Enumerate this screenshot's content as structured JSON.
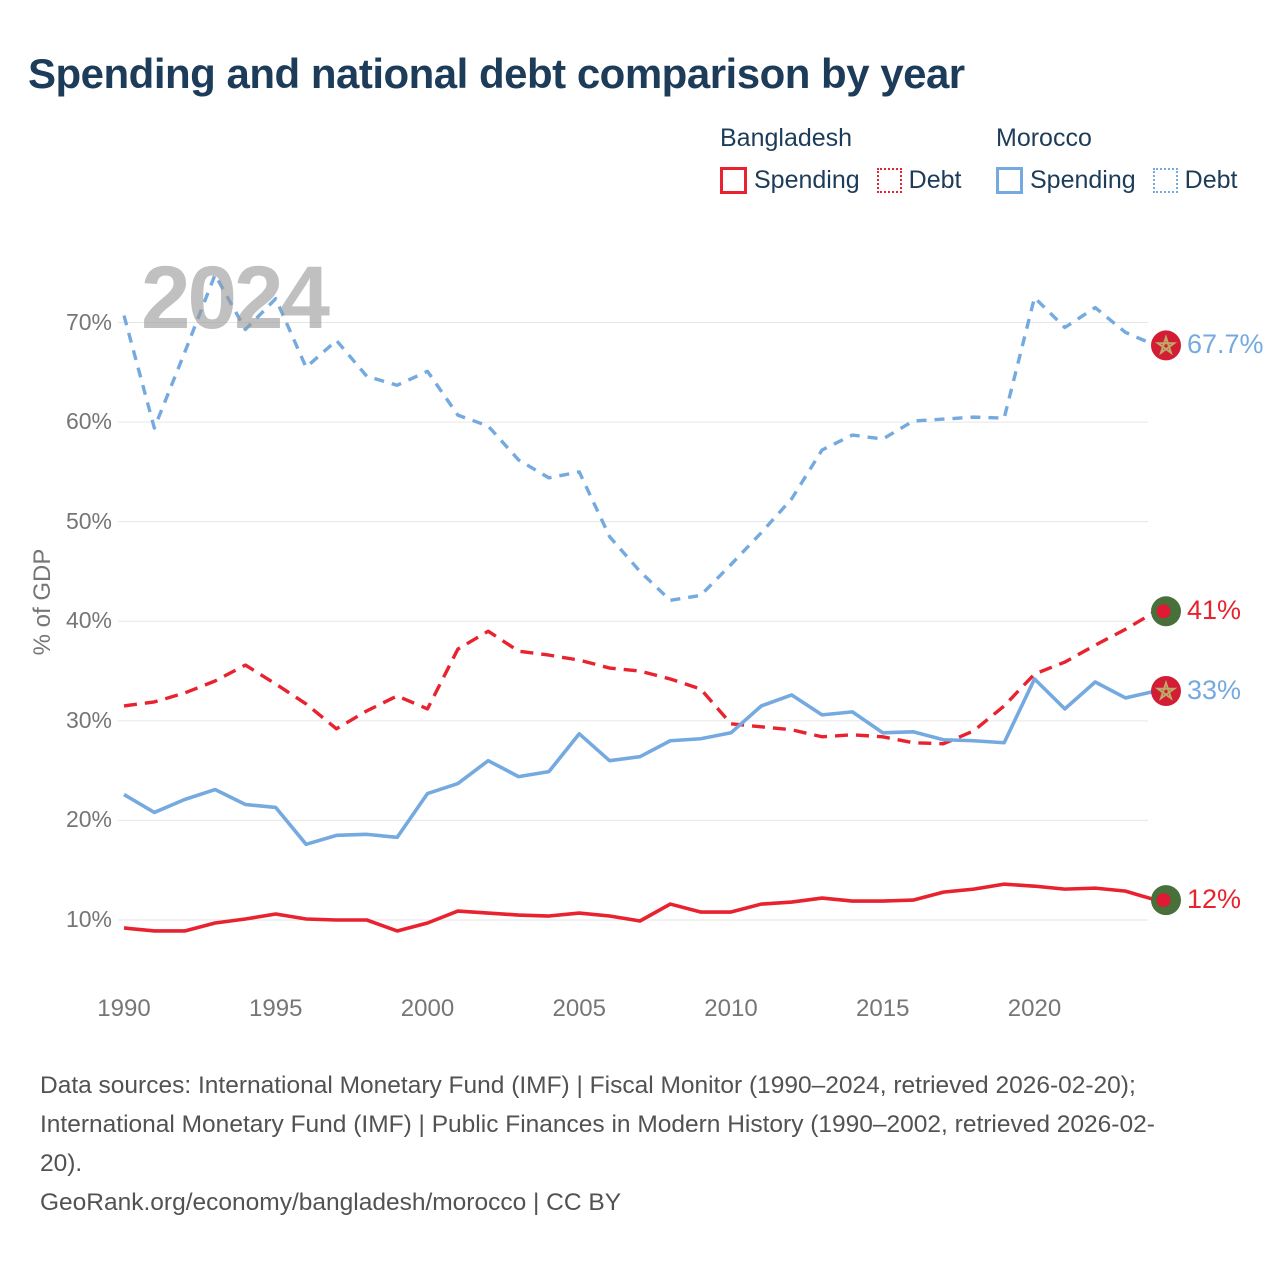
{
  "title": "Spending and national debt comparison by year",
  "watermark": "2024",
  "y_axis_title": "% of GDP",
  "legend": {
    "groups": [
      {
        "name": "Bangladesh",
        "color": "#e8232f",
        "items": [
          {
            "label": "Spending",
            "style": "solid"
          },
          {
            "label": "Debt",
            "style": "dotted"
          }
        ]
      },
      {
        "name": "Morocco",
        "color": "#74aae0",
        "items": [
          {
            "label": "Spending",
            "style": "solid"
          },
          {
            "label": "Debt",
            "style": "dotted"
          }
        ]
      }
    ]
  },
  "axes": {
    "yticks": [
      {
        "value": 10,
        "label": "10%"
      },
      {
        "value": 20,
        "label": "20%"
      },
      {
        "value": 30,
        "label": "30%"
      },
      {
        "value": 40,
        "label": "40%"
      },
      {
        "value": 50,
        "label": "50%"
      },
      {
        "value": 60,
        "label": "60%"
      },
      {
        "value": 70,
        "label": "70%"
      }
    ],
    "xticks": [
      {
        "value": 1990,
        "label": "1990"
      },
      {
        "value": 1995,
        "label": "1995"
      },
      {
        "value": 2000,
        "label": "2000"
      },
      {
        "value": 2005,
        "label": "2005"
      },
      {
        "value": 2010,
        "label": "2010"
      },
      {
        "value": 2015,
        "label": "2015"
      },
      {
        "value": 2020,
        "label": "2020"
      }
    ]
  },
  "chart_data": {
    "type": "line",
    "title": "Spending and national debt comparison by year",
    "xlabel": "",
    "ylabel": "% of GDP",
    "xlim": [
      1990,
      2024
    ],
    "ylim": [
      5,
      78
    ],
    "grid": "horizontal",
    "legend_position": "top-right",
    "x": [
      1990,
      1991,
      1992,
      1993,
      1994,
      1995,
      1996,
      1997,
      1998,
      1999,
      2000,
      2001,
      2002,
      2003,
      2004,
      2005,
      2006,
      2007,
      2008,
      2009,
      2010,
      2011,
      2012,
      2013,
      2014,
      2015,
      2016,
      2017,
      2018,
      2019,
      2020,
      2021,
      2022,
      2023,
      2024
    ],
    "series": [
      {
        "name": "Bangladesh Spending",
        "color": "#e8232f",
        "style": "solid",
        "values": [
          9.2,
          8.9,
          8.9,
          9.7,
          10.1,
          10.6,
          10.1,
          10.0,
          10.0,
          8.9,
          9.7,
          10.9,
          10.7,
          10.5,
          10.4,
          10.7,
          10.4,
          9.9,
          11.6,
          10.8,
          10.8,
          11.6,
          11.8,
          12.2,
          11.9,
          11.9,
          12.0,
          12.8,
          13.1,
          13.6,
          13.4,
          13.1,
          13.2,
          12.9,
          12.0
        ]
      },
      {
        "name": "Bangladesh Debt",
        "color": "#e8232f",
        "style": "dashed",
        "values": [
          31.5,
          31.9,
          32.8,
          34.0,
          35.6,
          33.7,
          31.7,
          29.2,
          31.0,
          32.5,
          31.2,
          37.2,
          39.0,
          37.0,
          36.6,
          36.1,
          35.3,
          35.0,
          34.2,
          33.2,
          29.7,
          29.4,
          29.1,
          28.4,
          28.6,
          28.4,
          27.8,
          27.7,
          29.0,
          31.5,
          34.7,
          35.9,
          37.6,
          39.2,
          41.0
        ]
      },
      {
        "name": "Morocco Spending",
        "color": "#74aae0",
        "style": "solid",
        "values": [
          22.6,
          20.8,
          22.1,
          23.1,
          21.6,
          21.3,
          17.6,
          18.5,
          18.6,
          18.3,
          22.7,
          23.7,
          26.0,
          24.4,
          24.9,
          28.7,
          26.0,
          26.4,
          28.0,
          28.2,
          28.8,
          31.5,
          32.6,
          30.6,
          30.9,
          28.8,
          28.9,
          28.1,
          28.0,
          27.8,
          34.2,
          31.2,
          33.9,
          32.3,
          33.0
        ]
      },
      {
        "name": "Morocco Debt",
        "color": "#74aae0",
        "style": "dashed",
        "values": [
          70.7,
          59.4,
          67.0,
          74.8,
          69.3,
          72.4,
          65.5,
          68.2,
          64.6,
          63.7,
          65.1,
          60.7,
          59.6,
          56.2,
          54.4,
          55.0,
          48.5,
          45.0,
          42.1,
          42.6,
          45.7,
          48.9,
          52.3,
          57.2,
          58.7,
          58.3,
          60.1,
          60.3,
          60.5,
          60.4,
          72.5,
          69.5,
          71.5,
          69.0,
          67.7
        ]
      }
    ]
  },
  "end_markers": [
    {
      "id": "morocco-debt",
      "series": "Morocco Debt",
      "flag": "morocco",
      "value": 67.7,
      "label": "67.7%",
      "label_color": "#74aae0",
      "circle_color": "#d21d35",
      "star_color": "#bda968"
    },
    {
      "id": "bangladesh-debt",
      "series": "Bangladesh Debt",
      "flag": "bangladesh",
      "value": 41,
      "label": "41%",
      "label_color": "#e8232f",
      "circle_color": "#47703a",
      "dot_color": "#e01934"
    },
    {
      "id": "morocco-spending",
      "series": "Morocco Spending",
      "flag": "morocco",
      "value": 33,
      "label": "33%",
      "label_color": "#74aae0",
      "circle_color": "#d21d35",
      "star_color": "#bda968"
    },
    {
      "id": "bangladesh-spending",
      "series": "Bangladesh Spending",
      "flag": "bangladesh",
      "value": 12,
      "label": "12%",
      "label_color": "#e8232f",
      "circle_color": "#47703a",
      "dot_color": "#e01934"
    }
  ],
  "footer": {
    "lines": [
      "Data sources: International Monetary Fund (IMF) | Fiscal Monitor (1990–2024, retrieved 2026-02-20);",
      "International Monetary Fund (IMF) | Public Finances in Modern History (1990–2002, retrieved 2026-02-",
      "20).",
      "GeoRank.org/economy/bangladesh/morocco | CC BY"
    ]
  },
  "colors": {
    "title": "#1d3c5a",
    "grid": "#e6e6e6",
    "tick_text": "#767676",
    "footer_text": "#525252",
    "watermark": "#9b9b9b"
  }
}
